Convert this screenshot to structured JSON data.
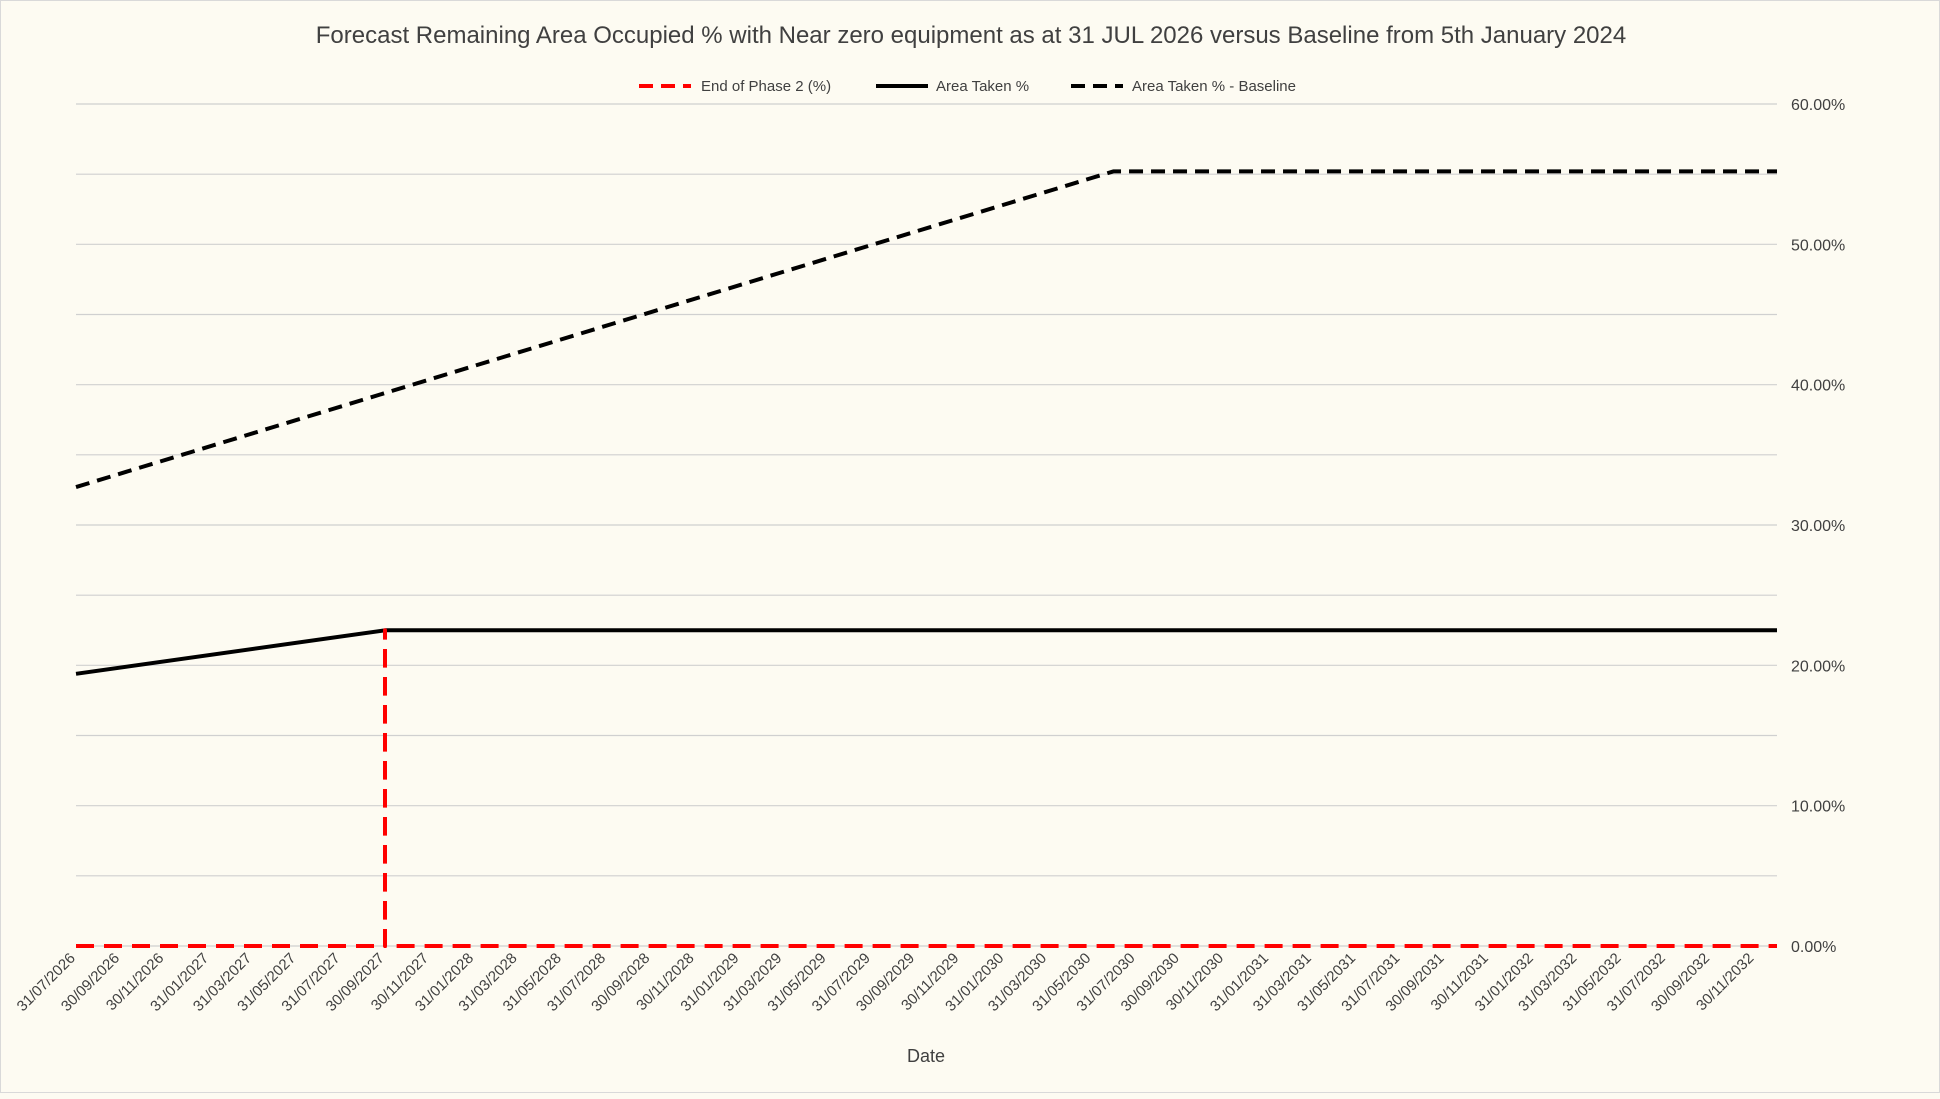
{
  "chart_data": {
    "type": "line",
    "title": "Forecast Remaining Area Occupied % with Near zero equipment as at 31 JUL 2026 versus Baseline from 5th January 2024",
    "xlabel": "Date",
    "ylabel": "",
    "ylim": [
      0,
      60
    ],
    "y_axis_position": "right",
    "y_ticks": [
      0,
      10,
      20,
      30,
      40,
      50,
      60
    ],
    "y_tick_labels": [
      "0.00%",
      "10.00%",
      "20.00%",
      "30.00%",
      "40.00%",
      "50.00%",
      "60.00%"
    ],
    "grid": true,
    "legend_position": "top",
    "x_tick_labels": [
      "31/07/2026",
      "30/09/2026",
      "30/11/2026",
      "31/01/2027",
      "31/03/2027",
      "31/05/2027",
      "31/07/2027",
      "30/09/2027",
      "30/11/2027",
      "31/01/2028",
      "31/03/2028",
      "31/05/2028",
      "31/07/2028",
      "30/09/2028",
      "30/11/2028",
      "31/01/2029",
      "31/03/2029",
      "31/05/2029",
      "31/07/2029",
      "30/09/2029",
      "30/11/2029",
      "31/01/2030",
      "31/03/2030",
      "31/05/2030",
      "31/07/2030",
      "30/09/2030",
      "30/11/2030",
      "31/01/2031",
      "31/03/2031",
      "31/05/2031",
      "31/07/2031",
      "30/09/2031",
      "30/11/2031",
      "31/01/2032",
      "31/03/2032",
      "31/05/2032",
      "31/07/2032",
      "30/09/2032",
      "30/11/2032"
    ],
    "x_range": [
      "31/07/2026",
      "31/12/2032"
    ],
    "series": [
      {
        "name": "End of Phase 2 (%)",
        "color": "#ff0000",
        "dash": "dashed",
        "points": [
          {
            "x": "31/07/2026",
            "y": 0
          },
          {
            "x": "30/09/2027",
            "y": 0
          },
          {
            "x": "30/09/2027",
            "y": 22.5
          },
          {
            "x": "30/09/2027",
            "y": 0
          },
          {
            "x": "31/12/2032",
            "y": 0
          }
        ]
      },
      {
        "name": "Area Taken %",
        "color": "#000000",
        "dash": "solid",
        "points": [
          {
            "x": "31/07/2026",
            "y": 19.4
          },
          {
            "x": "30/09/2027",
            "y": 22.5
          },
          {
            "x": "31/12/2032",
            "y": 22.5
          }
        ]
      },
      {
        "name": "Area Taken % - Baseline",
        "color": "#000000",
        "dash": "dashed",
        "points": [
          {
            "x": "31/07/2026",
            "y": 32.7
          },
          {
            "x": "30/06/2030",
            "y": 55.2
          },
          {
            "x": "31/12/2032",
            "y": 55.2
          }
        ]
      }
    ]
  }
}
